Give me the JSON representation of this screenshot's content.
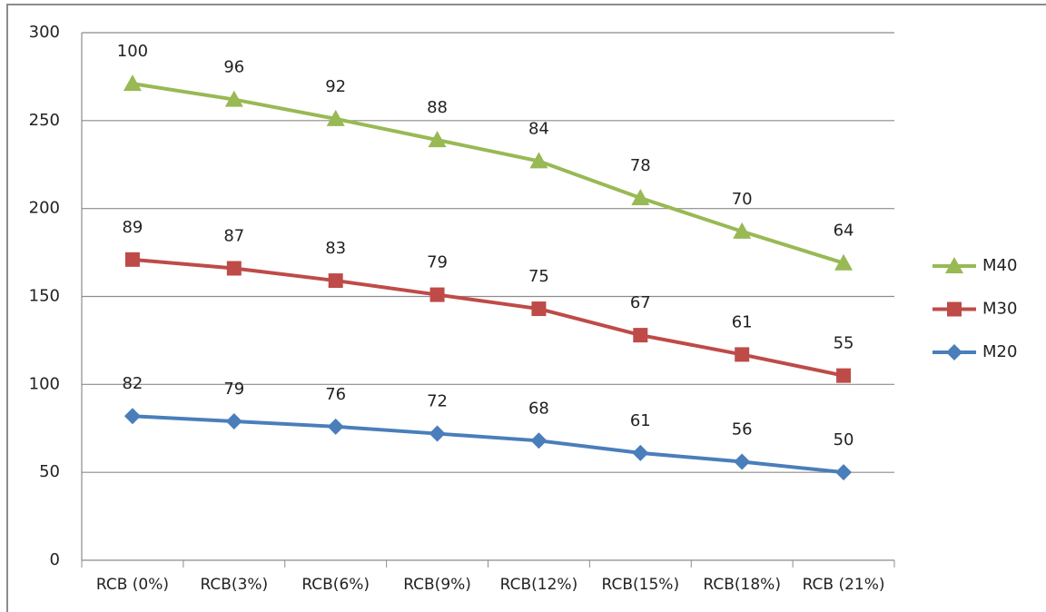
{
  "chart_data": {
    "type": "line",
    "stacked": true,
    "categories": [
      "RCB (0%)",
      "RCB(3%)",
      "RCB(6%)",
      "RCB(9%)",
      "RCB(12%)",
      "RCB(15%)",
      "RCB(18%)",
      "RCB (21%)"
    ],
    "series": [
      {
        "name": "M20",
        "color": "#4a7ebb",
        "marker": "diamond",
        "values": [
          82,
          79,
          76,
          72,
          68,
          61,
          56,
          50
        ]
      },
      {
        "name": "M30",
        "color": "#be4b48",
        "marker": "square",
        "values": [
          89,
          87,
          83,
          79,
          75,
          67,
          61,
          55
        ]
      },
      {
        "name": "M40",
        "color": "#98b954",
        "marker": "triangle",
        "values": [
          100,
          96,
          92,
          88,
          84,
          78,
          70,
          64
        ]
      }
    ],
    "ylim": [
      0,
      300
    ],
    "yticks": [
      0,
      50,
      100,
      150,
      200,
      250,
      300
    ],
    "grid": true,
    "legend": "right"
  }
}
